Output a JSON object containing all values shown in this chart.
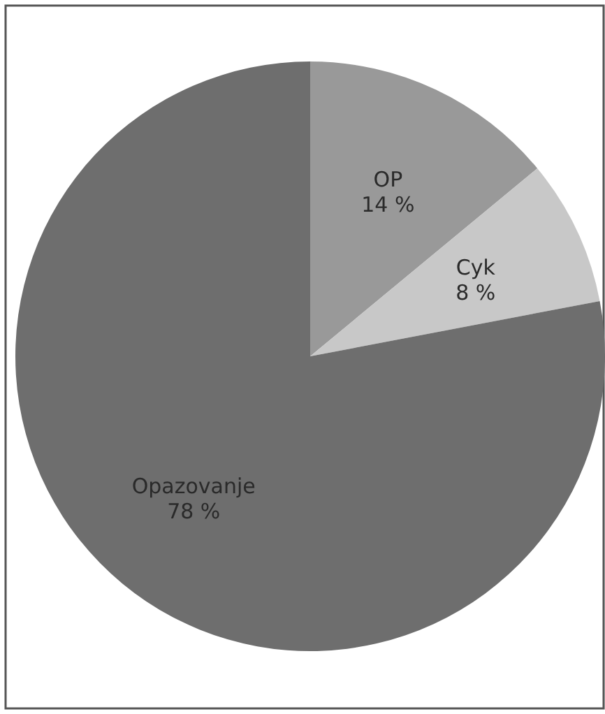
{
  "chart_data": {
    "type": "pie",
    "categories": [
      "OP",
      "Cyk",
      "Opazovanje"
    ],
    "values": [
      14,
      8,
      78
    ],
    "colors": [
      "#999999",
      "#c8c8c8",
      "#6e6e6e"
    ],
    "value_labels": [
      "14 %",
      "8 %",
      "78 %"
    ]
  }
}
